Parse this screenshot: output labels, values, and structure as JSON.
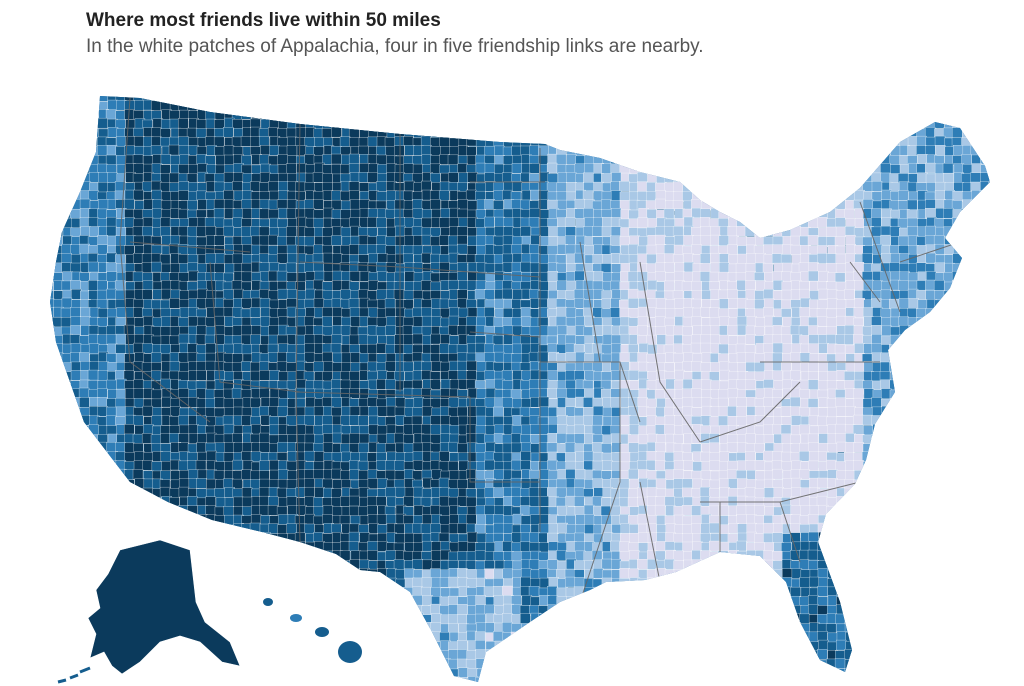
{
  "header": {
    "title": "Where most friends live within 50 miles",
    "subtitle": "In the white patches of Appalachia, four in five friendship links are nearby."
  },
  "palette": {
    "darkest": "#0b3a5c",
    "dark": "#155d8e",
    "medium": "#2e7db6",
    "light": "#6aa6d6",
    "lighter": "#a9c8e6",
    "palest": "#dcdcf0",
    "border": "#666666",
    "county_border": "#ffffff"
  },
  "map": {
    "regions": [
      {
        "name": "Pacific Northwest",
        "shade": "medium"
      },
      {
        "name": "Interior West",
        "shade": "darkest"
      },
      {
        "name": "Great Plains",
        "shade": "dark"
      },
      {
        "name": "Midwest",
        "shade": "lighter"
      },
      {
        "name": "Appalachia",
        "shade": "palest"
      },
      {
        "name": "Northeast",
        "shade": "light"
      },
      {
        "name": "Southeast",
        "shade": "lighter"
      },
      {
        "name": "Florida",
        "shade": "dark"
      },
      {
        "name": "Texas",
        "shade": "dark"
      },
      {
        "name": "Alaska",
        "shade": "darkest"
      },
      {
        "name": "Hawaii",
        "shade": "dark"
      }
    ]
  }
}
